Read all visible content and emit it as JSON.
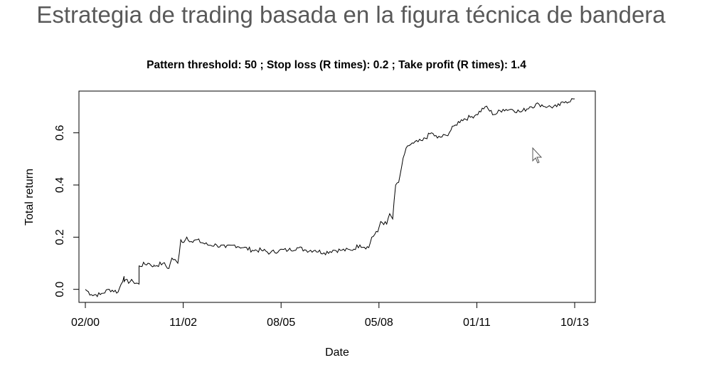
{
  "slide": {
    "title": "Estrategia de trading basada en la figura técnica de bandera"
  },
  "chart_data": {
    "type": "line",
    "title": "Pattern threshold:  50 ; Stop loss (R times):  0.2 ; Take profit (R times):  1.4",
    "xlabel": "Date",
    "ylabel": "Total return",
    "x_ticks": [
      "02/00",
      "11/02",
      "08/05",
      "05/08",
      "01/11",
      "10/13"
    ],
    "x_range": [
      "2000-02",
      "2013-10"
    ],
    "y_ticks": [
      "0.0",
      "0.2",
      "0.4",
      "0.6"
    ],
    "ylim": [
      -0.05,
      0.76
    ],
    "grid": false,
    "legend": "none",
    "line_color": "#000000",
    "series": [
      {
        "x": [
          "2000-02",
          "2000-04",
          "2000-07",
          "2000-10",
          "2001-01",
          "2001-03",
          "2001-03",
          "2001-06",
          "2001-08",
          "2001-08",
          "2001-11",
          "2002-01",
          "2002-01",
          "2002-04",
          "2002-06",
          "2002-07",
          "2002-09",
          "2002-10",
          "2002-11",
          "2002-12",
          "2003-02",
          "2003-03",
          "2003-07",
          "2003-10",
          "2004-01",
          "2004-04",
          "2004-07",
          "2004-10",
          "2005-01",
          "2005-04",
          "2005-07",
          "2005-10",
          "2006-01",
          "2006-04",
          "2006-07",
          "2006-10",
          "2007-01",
          "2007-04",
          "2007-07",
          "2007-10",
          "2008-01",
          "2008-02",
          "2008-04",
          "2008-05",
          "2008-07",
          "2008-08",
          "2008-09",
          "2008-10",
          "2008-11",
          "2008-12",
          "2009-01",
          "2009-02",
          "2009-04",
          "2009-07",
          "2009-10",
          "2009-12",
          "2010-03",
          "2010-06",
          "2010-08",
          "2010-11",
          "2011-01",
          "2011-04",
          "2011-07",
          "2011-10",
          "2012-01",
          "2012-04",
          "2012-07",
          "2012-10",
          "2013-01",
          "2013-04",
          "2013-07",
          "2013-10"
        ],
        "y": [
          0.0,
          -0.02,
          -0.02,
          0.0,
          -0.01,
          0.05,
          0.03,
          0.03,
          0.02,
          0.09,
          0.1,
          0.09,
          0.09,
          0.1,
          0.08,
          0.12,
          0.1,
          0.19,
          0.18,
          0.2,
          0.18,
          0.19,
          0.17,
          0.17,
          0.16,
          0.17,
          0.16,
          0.15,
          0.15,
          0.14,
          0.15,
          0.15,
          0.16,
          0.15,
          0.15,
          0.14,
          0.15,
          0.15,
          0.15,
          0.17,
          0.16,
          0.2,
          0.22,
          0.26,
          0.25,
          0.29,
          0.27,
          0.4,
          0.41,
          0.47,
          0.52,
          0.55,
          0.56,
          0.57,
          0.6,
          0.58,
          0.59,
          0.63,
          0.65,
          0.66,
          0.67,
          0.7,
          0.67,
          0.69,
          0.69,
          0.68,
          0.7,
          0.71,
          0.7,
          0.7,
          0.72,
          0.73
        ]
      }
    ]
  }
}
